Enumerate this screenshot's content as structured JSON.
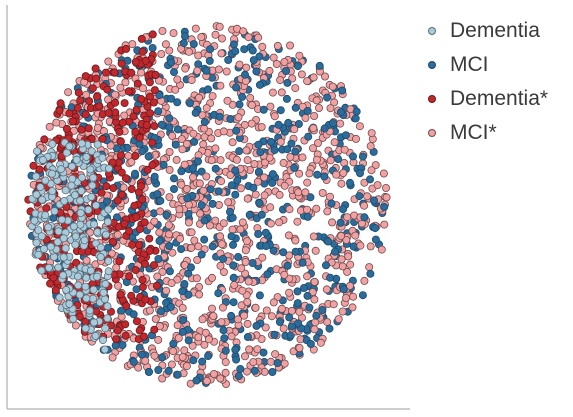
{
  "chart_data": {
    "type": "scatter",
    "title": "",
    "xlabel": "",
    "ylabel": "",
    "grid": false,
    "axes": {
      "left_spine": true,
      "bottom_spine": true,
      "ticks": false
    },
    "legend_position": "top-right",
    "cluster": {
      "center": [
        0,
        0
      ],
      "radius": 1.0
    },
    "series": [
      {
        "name": "Dementia",
        "color": "#a9cbdc",
        "edge": "#5a6e7a",
        "region": "left edge, lower-left",
        "approx_points": 420
      },
      {
        "name": "MCI",
        "color": "#2b6c9a",
        "edge": "#1d4a6b",
        "region": "spread throughout",
        "approx_points": 1100
      },
      {
        "name": "Dementia*",
        "color": "#c0282d",
        "edge": "#6b1a1c",
        "region": "left portion",
        "approx_points": 600
      },
      {
        "name": "MCI*",
        "color": "#f2a1a3",
        "edge": "#6f4b4c",
        "region": "spread throughout",
        "approx_points": 2200
      }
    ]
  }
}
